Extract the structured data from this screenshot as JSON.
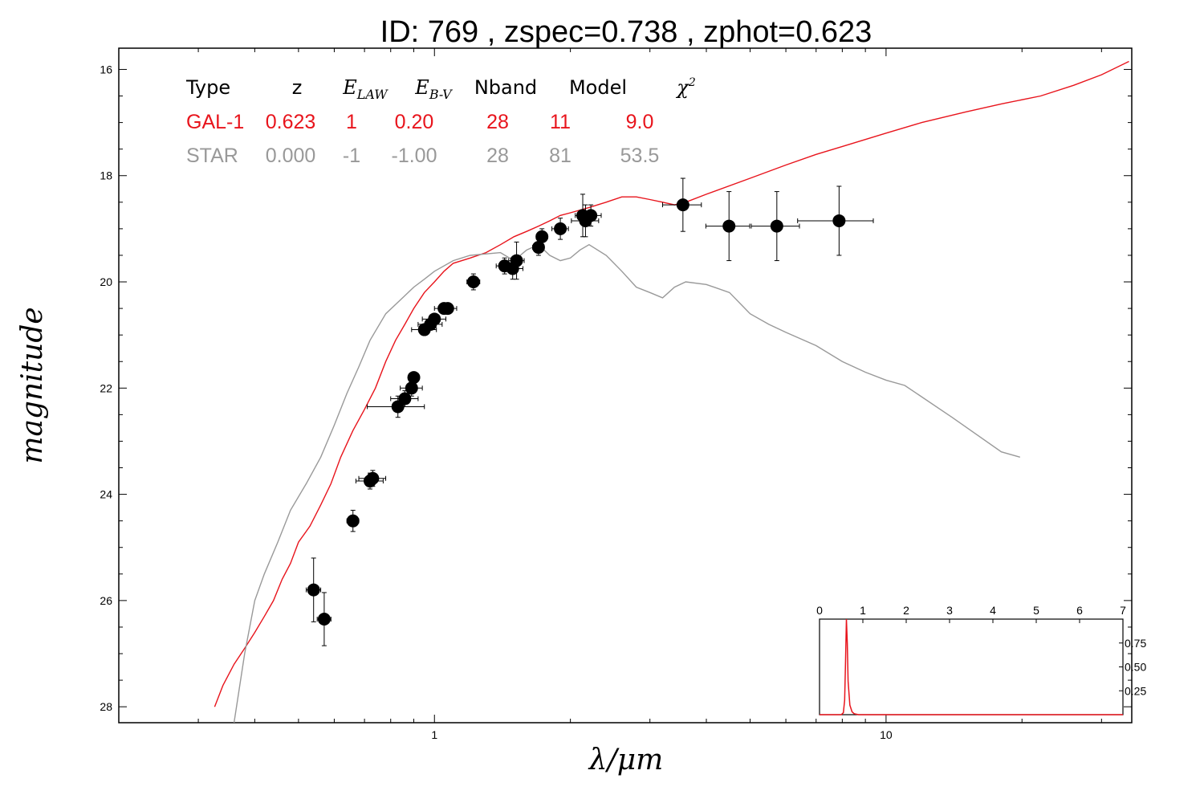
{
  "chart_data": {
    "type": "line",
    "title": "ID:  769   , zspec=0.738 , zphot=0.623",
    "xlabel": "λ/μm",
    "ylabel": "magnitude",
    "xscale": "log",
    "xlim": [
      0.2,
      35
    ],
    "ylim": [
      28.3,
      15.6
    ],
    "y_inverted": true,
    "x_ticks": [
      {
        "value": 1,
        "label": "1"
      },
      {
        "value": 10,
        "label": "10"
      }
    ],
    "y_ticks": [
      {
        "value": 16,
        "label": "16"
      },
      {
        "value": 18,
        "label": "18"
      },
      {
        "value": 20,
        "label": "20"
      },
      {
        "value": 22,
        "label": "22"
      },
      {
        "value": 24,
        "label": "24"
      },
      {
        "value": 26,
        "label": "26"
      },
      {
        "value": 28,
        "label": "28"
      }
    ],
    "grid": false,
    "legend_table": {
      "headers": [
        "Type",
        "z",
        "E_LAW",
        "E_B-V",
        "Nband",
        "Model",
        "χ²"
      ],
      "rows": [
        {
          "name": "GAL-1",
          "color": "#e8141c",
          "cells": [
            "GAL-1",
            "0.623",
            "1",
            "0.20",
            "28",
            "11",
            "9.0"
          ]
        },
        {
          "name": "STAR",
          "color": "#999999",
          "cells": [
            "STAR",
            "0.000",
            "-1",
            "-1.00",
            "28",
            "81",
            "53.5"
          ]
        }
      ]
    },
    "series": [
      {
        "name": "GAL-1",
        "color": "#e8141c",
        "points": [
          [
            0.326,
            28.0
          ],
          [
            0.34,
            27.6
          ],
          [
            0.36,
            27.2
          ],
          [
            0.38,
            26.9
          ],
          [
            0.4,
            26.6
          ],
          [
            0.42,
            26.3
          ],
          [
            0.44,
            26.0
          ],
          [
            0.46,
            25.6
          ],
          [
            0.48,
            25.3
          ],
          [
            0.5,
            24.9
          ],
          [
            0.53,
            24.6
          ],
          [
            0.56,
            24.2
          ],
          [
            0.59,
            23.8
          ],
          [
            0.62,
            23.3
          ],
          [
            0.66,
            22.8
          ],
          [
            0.7,
            22.4
          ],
          [
            0.74,
            22.0
          ],
          [
            0.78,
            21.5
          ],
          [
            0.82,
            21.1
          ],
          [
            0.86,
            20.8
          ],
          [
            0.9,
            20.5
          ],
          [
            0.95,
            20.2
          ],
          [
            1.0,
            20.0
          ],
          [
            1.05,
            19.8
          ],
          [
            1.1,
            19.65
          ],
          [
            1.2,
            19.55
          ],
          [
            1.3,
            19.45
          ],
          [
            1.4,
            19.3
          ],
          [
            1.5,
            19.15
          ],
          [
            1.6,
            19.05
          ],
          [
            1.7,
            18.95
          ],
          [
            1.8,
            18.85
          ],
          [
            1.9,
            18.75
          ],
          [
            2.0,
            18.7
          ],
          [
            2.2,
            18.6
          ],
          [
            2.4,
            18.5
          ],
          [
            2.6,
            18.4
          ],
          [
            2.8,
            18.4
          ],
          [
            3.0,
            18.45
          ],
          [
            3.2,
            18.5
          ],
          [
            3.4,
            18.55
          ],
          [
            3.6,
            18.5
          ],
          [
            4.0,
            18.35
          ],
          [
            5.0,
            18.05
          ],
          [
            6.0,
            17.8
          ],
          [
            7.0,
            17.6
          ],
          [
            8.0,
            17.45
          ],
          [
            10.0,
            17.2
          ],
          [
            12.0,
            17.0
          ],
          [
            15.0,
            16.8
          ],
          [
            18.0,
            16.65
          ],
          [
            22.0,
            16.5
          ],
          [
            26.0,
            16.3
          ],
          [
            30.0,
            16.1
          ],
          [
            34.5,
            15.85
          ]
        ]
      },
      {
        "name": "STAR",
        "color": "#999999",
        "points": [
          [
            0.36,
            28.3
          ],
          [
            0.38,
            27.0
          ],
          [
            0.4,
            26.0
          ],
          [
            0.42,
            25.5
          ],
          [
            0.45,
            24.9
          ],
          [
            0.48,
            24.3
          ],
          [
            0.52,
            23.8
          ],
          [
            0.56,
            23.3
          ],
          [
            0.6,
            22.7
          ],
          [
            0.64,
            22.1
          ],
          [
            0.68,
            21.6
          ],
          [
            0.72,
            21.1
          ],
          [
            0.78,
            20.6
          ],
          [
            0.85,
            20.3
          ],
          [
            0.9,
            20.1
          ],
          [
            0.95,
            19.95
          ],
          [
            1.0,
            19.8
          ],
          [
            1.1,
            19.6
          ],
          [
            1.2,
            19.5
          ],
          [
            1.4,
            19.45
          ],
          [
            1.5,
            19.6
          ],
          [
            1.6,
            19.4
          ],
          [
            1.7,
            19.3
          ],
          [
            1.8,
            19.5
          ],
          [
            1.9,
            19.6
          ],
          [
            2.0,
            19.55
          ],
          [
            2.1,
            19.4
          ],
          [
            2.2,
            19.3
          ],
          [
            2.4,
            19.5
          ],
          [
            2.6,
            19.8
          ],
          [
            2.8,
            20.1
          ],
          [
            3.0,
            20.2
          ],
          [
            3.2,
            20.3
          ],
          [
            3.4,
            20.1
          ],
          [
            3.6,
            20.0
          ],
          [
            4.0,
            20.05
          ],
          [
            4.5,
            20.2
          ],
          [
            5.0,
            20.6
          ],
          [
            5.5,
            20.8
          ],
          [
            6.0,
            20.95
          ],
          [
            7.0,
            21.2
          ],
          [
            8.0,
            21.5
          ],
          [
            9.0,
            21.7
          ],
          [
            10.0,
            21.85
          ],
          [
            11.0,
            21.95
          ],
          [
            14.0,
            22.55
          ],
          [
            18.0,
            23.2
          ],
          [
            19.8,
            23.3
          ]
        ]
      }
    ],
    "photometry": [
      {
        "x": 0.54,
        "y": 25.8,
        "xerr": 0.02,
        "yerr": 0.6
      },
      {
        "x": 0.57,
        "y": 26.35,
        "xerr": 0.02,
        "yerr": 0.5
      },
      {
        "x": 0.66,
        "y": 24.5,
        "xerr": 0.02,
        "yerr": 0.2
      },
      {
        "x": 0.72,
        "y": 23.75,
        "xerr": 0.05,
        "yerr": 0.15
      },
      {
        "x": 0.73,
        "y": 23.7,
        "xerr": 0.05,
        "yerr": 0.15
      },
      {
        "x": 0.83,
        "y": 22.35,
        "xerr": 0.12,
        "yerr": 0.2
      },
      {
        "x": 0.86,
        "y": 22.2,
        "xerr": 0.06,
        "yerr": 0.15
      },
      {
        "x": 0.89,
        "y": 22.0,
        "xerr": 0.05,
        "yerr": 0.15
      },
      {
        "x": 0.9,
        "y": 21.8,
        "xerr": 0.02,
        "yerr": 0.1
      },
      {
        "x": 0.95,
        "y": 20.9,
        "xerr": 0.06,
        "yerr": 0.1
      },
      {
        "x": 0.98,
        "y": 20.8,
        "xerr": 0.06,
        "yerr": 0.1
      },
      {
        "x": 1.0,
        "y": 20.7,
        "xerr": 0.06,
        "yerr": 0.1
      },
      {
        "x": 1.05,
        "y": 20.5,
        "xerr": 0.05,
        "yerr": 0.1
      },
      {
        "x": 1.07,
        "y": 20.5,
        "xerr": 0.05,
        "yerr": 0.1
      },
      {
        "x": 1.22,
        "y": 20.0,
        "xerr": 0.04,
        "yerr": 0.15
      },
      {
        "x": 1.43,
        "y": 19.7,
        "xerr": 0.06,
        "yerr": 0.15
      },
      {
        "x": 1.49,
        "y": 19.75,
        "xerr": 0.08,
        "yerr": 0.2
      },
      {
        "x": 1.52,
        "y": 19.6,
        "xerr": 0.06,
        "yerr": 0.35
      },
      {
        "x": 1.7,
        "y": 19.35,
        "xerr": 0.05,
        "yerr": 0.15
      },
      {
        "x": 1.73,
        "y": 19.15,
        "xerr": 0.05,
        "yerr": 0.15
      },
      {
        "x": 1.9,
        "y": 19.0,
        "xerr": 0.08,
        "yerr": 0.2
      },
      {
        "x": 2.13,
        "y": 18.75,
        "xerr": 0.08,
        "yerr": 0.4
      },
      {
        "x": 2.16,
        "y": 18.85,
        "xerr": 0.15,
        "yerr": 0.3
      },
      {
        "x": 2.22,
        "y": 18.75,
        "xerr": 0.12,
        "yerr": 0.2
      },
      {
        "x": 3.55,
        "y": 18.55,
        "xerr": 0.35,
        "yerr": 0.5
      },
      {
        "x": 4.49,
        "y": 18.95,
        "xerr": 0.5,
        "yerr": 0.65
      },
      {
        "x": 5.73,
        "y": 18.95,
        "xerr": 0.7,
        "yerr": 0.65
      },
      {
        "x": 7.87,
        "y": 18.85,
        "xerr": 1.5,
        "yerr": 0.65
      }
    ],
    "inset": {
      "type": "line",
      "xlim": [
        0,
        7
      ],
      "ylim": [
        0,
        1.0
      ],
      "x_ticks": [
        "0",
        "1",
        "2",
        "3",
        "4",
        "5",
        "6",
        "7"
      ],
      "y_ticks": [
        {
          "value": 0.25,
          "label": "0.25"
        },
        {
          "value": 0.5,
          "label": "0.50"
        },
        {
          "value": 0.75,
          "label": "0.75"
        }
      ],
      "color": "#e8141c",
      "points": [
        [
          0,
          0
        ],
        [
          0.5,
          0
        ],
        [
          0.55,
          0.02
        ],
        [
          0.58,
          0.15
        ],
        [
          0.6,
          0.55
        ],
        [
          0.62,
          1.0
        ],
        [
          0.64,
          0.75
        ],
        [
          0.66,
          0.35
        ],
        [
          0.7,
          0.1
        ],
        [
          0.75,
          0.03
        ],
        [
          0.8,
          0.01
        ],
        [
          0.9,
          0
        ],
        [
          7,
          0
        ]
      ]
    }
  }
}
